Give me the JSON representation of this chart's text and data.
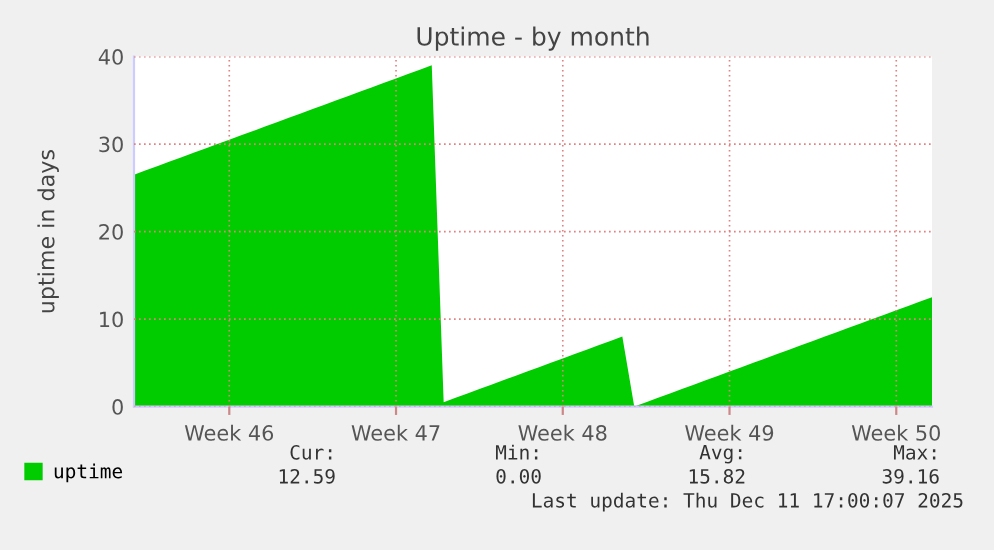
{
  "chart_data": {
    "type": "area",
    "title": "Uptime - by month",
    "ylabel": "uptime in days",
    "categories": [
      null,
      null,
      null,
      null,
      null,
      null,
      null,
      null,
      "Week 46",
      null,
      null,
      null,
      null,
      null,
      null,
      null,
      null,
      null,
      null,
      null,
      null,
      null,
      "Week 47",
      null,
      null,
      null,
      null,
      null,
      null,
      null,
      null,
      null,
      null,
      null,
      null,
      null,
      "Week 48",
      null,
      null,
      null,
      null,
      null,
      null,
      null,
      null,
      null,
      null,
      null,
      null,
      null,
      "Week 49",
      null,
      null,
      null,
      null,
      null,
      null,
      null,
      null,
      null,
      null,
      null,
      null,
      null,
      "Week 50",
      null,
      null,
      null
    ],
    "series": [
      {
        "name": "uptime",
        "color": "#00cc00",
        "values": [
          26.5,
          27,
          27.5,
          28,
          28.5,
          29,
          29.5,
          30,
          30.5,
          31,
          31.5,
          32,
          32.5,
          33,
          33.5,
          34,
          34.5,
          35,
          35.5,
          36,
          36.5,
          37,
          37.5,
          38,
          38.5,
          39,
          0.5,
          1,
          1.5,
          2,
          2.5,
          3,
          3.5,
          4,
          4.5,
          5,
          5.5,
          6,
          6.5,
          7,
          7.5,
          8,
          0,
          0.5,
          1,
          1.5,
          2,
          2.5,
          3,
          3.5,
          4,
          4.5,
          5,
          5.5,
          6,
          6.5,
          7,
          7.5,
          8,
          8.5,
          9,
          9.5,
          10,
          10.5,
          11,
          11.5,
          12,
          12.5
        ]
      }
    ],
    "ylim": [
      0,
      40
    ],
    "yticks": [
      0,
      10,
      20,
      30,
      40
    ],
    "grid": true,
    "legend": "bottom left",
    "annotations": [
      "Cur:",
      "Min:",
      "Avg:",
      "Max:",
      "12.59",
      "0.00",
      "15.82",
      "39.16",
      "Last update: Thu Dec 11 17:00:07 2025"
    ]
  }
}
